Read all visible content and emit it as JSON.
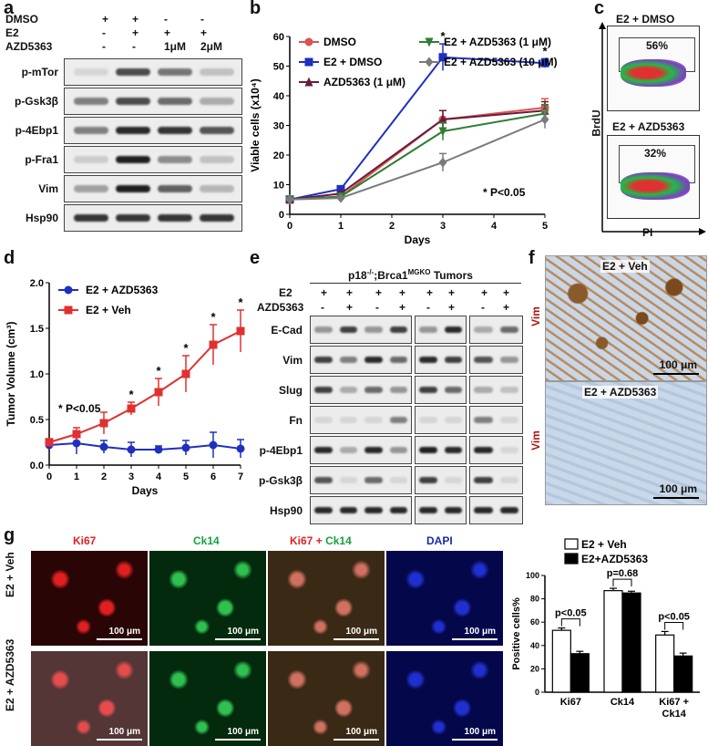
{
  "panel_labels": {
    "a": "a",
    "b": "b",
    "c": "c",
    "d": "d",
    "e": "e",
    "f": "f",
    "g": "g"
  },
  "panel_a": {
    "treatments": [
      {
        "name": "DMSO",
        "values": [
          "+",
          "+",
          "-",
          "-"
        ]
      },
      {
        "name": "E2",
        "values": [
          "-",
          "+",
          "+",
          "+"
        ]
      },
      {
        "name": "AZD5363",
        "values": [
          "-",
          "-",
          "1μM",
          "2μM"
        ]
      }
    ],
    "blots": [
      "p-mTor",
      "p-Gsk3β",
      "p-4Ebp1",
      "p-Fra1",
      "Vim",
      "Hsp90"
    ]
  },
  "panel_c": {
    "top_label": "E2 + DMSO",
    "top_percent": "56%",
    "bottom_label": "E2 + AZD5363",
    "bottom_percent": "32%",
    "y_axis": "BrdU",
    "x_axis": "PI"
  },
  "panel_e": {
    "title": "p18-/-;Brca1MGKO Tumors",
    "title_main": "p18",
    "title_sup": "-/-",
    "title_mid": ";Brca1",
    "title_sup2": "MGKO",
    "title_end": " Tumors",
    "rows": [
      {
        "name": "E2",
        "values": [
          "+",
          "+",
          "+",
          "+",
          "+",
          "+",
          "+",
          "+"
        ]
      },
      {
        "name": "AZD5363",
        "values": [
          "-",
          "+",
          "-",
          "+",
          "-",
          "+",
          "-",
          "+"
        ]
      }
    ],
    "blots": [
      "E-Cad",
      "Vim",
      "Slug",
      "Fn",
      "p-4Ebp1",
      "p-Gsk3β",
      "Hsp90"
    ]
  },
  "panel_f": {
    "top_label": "E2 + Veh",
    "bottom_label": "E2 + AZD5363",
    "stain": "Vim",
    "scale": "100 μm"
  },
  "panel_g": {
    "columns": [
      "Ki67",
      "Ck14",
      "Ki67",
      "+",
      "Ck14",
      "DAPI"
    ],
    "rows": [
      "E2 + Veh",
      "E2 + AZD5363"
    ],
    "scale": "100 μm"
  },
  "chart_data": [
    {
      "type": "line",
      "panel": "b",
      "xlabel": "Days",
      "ylabel": "Viable cells (x10⁴)",
      "xlim": [
        0,
        5
      ],
      "ylim": [
        0,
        60
      ],
      "xticks": [
        0,
        1,
        2,
        3,
        4,
        5
      ],
      "yticks": [
        0,
        10,
        20,
        30,
        40,
        50,
        60
      ],
      "annotation": "* P<0.05",
      "stars_at_x": [
        3,
        5
      ],
      "series": [
        {
          "name": "DMSO",
          "color": "#d9534f",
          "marker": "circle",
          "x": [
            0,
            1,
            3,
            5
          ],
          "y": [
            5,
            6,
            32,
            36
          ],
          "err": [
            0.5,
            0.5,
            3,
            3
          ]
        },
        {
          "name": "E2 + DMSO",
          "color": "#1f2fbf",
          "marker": "square",
          "x": [
            0,
            1,
            3,
            5
          ],
          "y": [
            5,
            8.5,
            53,
            51
          ],
          "err": [
            0.5,
            0.8,
            4.5,
            1.5
          ]
        },
        {
          "name": "AZD5363 (1 μM)",
          "color": "#6b1a3c",
          "marker": "triangle",
          "x": [
            0,
            1,
            3,
            5
          ],
          "y": [
            5,
            7,
            32,
            35
          ],
          "err": [
            0.5,
            0.5,
            3,
            3
          ]
        },
        {
          "name": "E2 + AZD5363 (1 μM)",
          "color": "#2e7d32",
          "marker": "triangle-down",
          "x": [
            0,
            1,
            3,
            5
          ],
          "y": [
            5,
            6,
            28,
            34
          ],
          "err": [
            0.5,
            0.5,
            3,
            3
          ]
        },
        {
          "name": "E2 + AZD5363 (10 μM)",
          "color": "#7a7a7a",
          "marker": "diamond",
          "x": [
            0,
            1,
            3,
            5
          ],
          "y": [
            5,
            5.5,
            17.5,
            32
          ],
          "err": [
            0.5,
            0.5,
            3,
            3
          ]
        }
      ]
    },
    {
      "type": "line",
      "panel": "d",
      "xlabel": "Days",
      "ylabel": "Tumor Volume (cm³)",
      "xlim": [
        0,
        7
      ],
      "ylim": [
        0,
        2.0
      ],
      "xticks": [
        0,
        1,
        2,
        3,
        4,
        5,
        6,
        7
      ],
      "yticks": [
        0.0,
        0.5,
        1.0,
        1.5,
        2.0
      ],
      "annotation": "* P<0.05",
      "stars_at_x": [
        3,
        4,
        5,
        6,
        7
      ],
      "series": [
        {
          "name": "E2 + AZD5363",
          "color": "#1f2fbf",
          "marker": "circle",
          "x": [
            0,
            1,
            2,
            3,
            4,
            5,
            6,
            7
          ],
          "y": [
            0.22,
            0.24,
            0.2,
            0.17,
            0.17,
            0.19,
            0.22,
            0.18
          ],
          "err": [
            0.05,
            0.12,
            0.07,
            0.08,
            0.04,
            0.08,
            0.14,
            0.1
          ]
        },
        {
          "name": "E2 + Veh",
          "color": "#e03030",
          "marker": "square",
          "x": [
            0,
            1,
            2,
            3,
            4,
            5,
            6,
            7
          ],
          "y": [
            0.25,
            0.34,
            0.46,
            0.62,
            0.8,
            1.0,
            1.32,
            1.47
          ],
          "err": [
            0.04,
            0.07,
            0.12,
            0.07,
            0.15,
            0.2,
            0.22,
            0.23
          ]
        }
      ]
    },
    {
      "type": "bar",
      "panel": "g",
      "ylabel": "Positive cells%",
      "ylim": [
        0,
        100
      ],
      "yticks": [
        0,
        20,
        40,
        60,
        80,
        100
      ],
      "categories": [
        "Ki67",
        "Ck14",
        "Ki67 + Ck14"
      ],
      "series": [
        {
          "name": "E2 + Veh",
          "color": "#ffffff",
          "values": [
            53,
            87,
            49
          ],
          "err": [
            2,
            2,
            3
          ]
        },
        {
          "name": "E2+AZD5363",
          "color": "#000000",
          "values": [
            33,
            85,
            31
          ],
          "err": [
            2,
            1.5,
            2.5
          ]
        }
      ],
      "annotations": [
        "p<0.05",
        "p=0.68",
        "p<0.05"
      ]
    }
  ]
}
